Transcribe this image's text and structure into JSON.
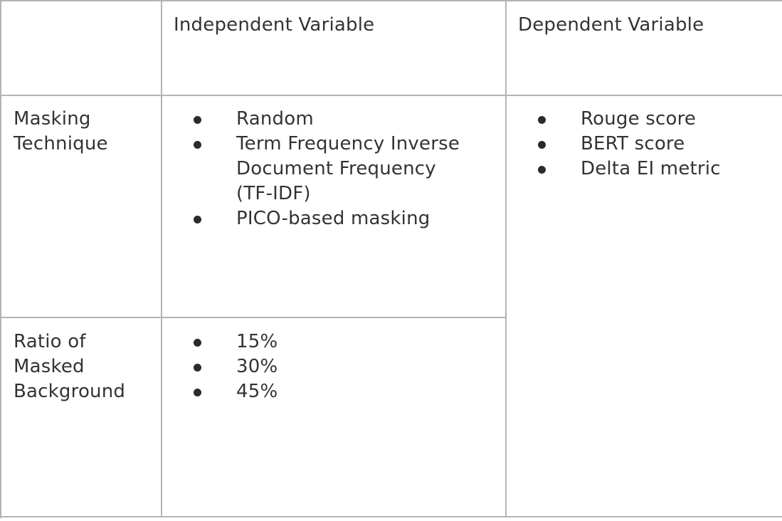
{
  "table": {
    "header": {
      "corner": "",
      "independent": "Independent Variable",
      "dependent": "Dependent Variable"
    },
    "rows": [
      {
        "label_lines": [
          "Masking",
          "Technique"
        ],
        "independent_items": [
          {
            "lines": [
              "Random"
            ]
          },
          {
            "lines": [
              "Term Frequency Inverse",
              "Document Frequency",
              "(TF-IDF)"
            ]
          },
          {
            "lines": [
              "PICO-based masking"
            ]
          }
        ]
      },
      {
        "label_lines": [
          "Ratio of",
          "Masked",
          "Background"
        ],
        "independent_items": [
          {
            "lines": [
              "15%"
            ]
          },
          {
            "lines": [
              "30%"
            ]
          },
          {
            "lines": [
              "45%"
            ]
          }
        ]
      }
    ],
    "dependent_items": [
      "Rouge score",
      "BERT score",
      "Delta EI metric"
    ]
  }
}
